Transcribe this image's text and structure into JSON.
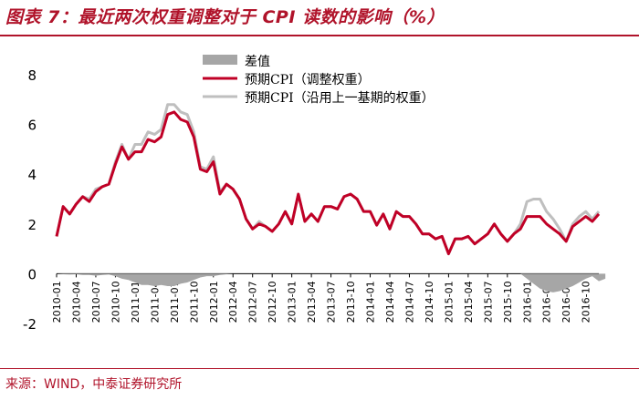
{
  "title": "图表 7：最近两次权重调整对于 CPI 读数的影响（%）",
  "source": "来源：WIND，中泰证券研究所",
  "colors": {
    "brand": "#b0132a",
    "diff": "#a6a6a6",
    "adjusted": "#c00026",
    "previous": "#bfbfbf",
    "axis": "#000000"
  },
  "chart_data": {
    "type": "line",
    "title": "最近两次权重调整对于 CPI 读数的影响（%）",
    "ylim": [
      -2,
      8
    ],
    "yticks": [
      "-2",
      "0",
      "2",
      "4",
      "6",
      "8"
    ],
    "xticks": [
      "2010-01",
      "2010-04",
      "2010-07",
      "2010-10",
      "2011-01",
      "2011-04",
      "2011-07",
      "2011-10",
      "2012-01",
      "2012-04",
      "2012-07",
      "2012-10",
      "2013-01",
      "2013-04",
      "2013-07",
      "2013-10",
      "2014-01",
      "2014-04",
      "2014-07",
      "2014-10",
      "2015-01",
      "2015-04",
      "2015-07",
      "2015-10",
      "2016-01",
      "2016-04",
      "2016-07",
      "2016-10"
    ],
    "legend": {
      "placement": "top-center",
      "items": [
        "差值",
        "预期CPI（调整权重）",
        "预期CPI（沿用上一基期的权重）"
      ]
    },
    "x_start": "2010-01",
    "series": [
      {
        "name": "差值",
        "kind": "area",
        "values": [
          0,
          -0.02,
          -0.03,
          -0.02,
          -0.05,
          -0.05,
          -0.08,
          -0.05,
          -0.03,
          -0.1,
          -0.2,
          -0.25,
          -0.35,
          -0.45,
          -0.45,
          -0.5,
          -0.45,
          -0.5,
          -0.5,
          -0.4,
          -0.35,
          -0.25,
          -0.15,
          -0.1,
          -0.1,
          -0.05,
          -0.02,
          0,
          0,
          0,
          0,
          0,
          0,
          0,
          0,
          0,
          0,
          0,
          0,
          0,
          0,
          0,
          0,
          0,
          0,
          0,
          0,
          0,
          0,
          0,
          0,
          0,
          0,
          0,
          0,
          0,
          0,
          0,
          0,
          0,
          0,
          0,
          0,
          0,
          0,
          0,
          0,
          0,
          0,
          0,
          0,
          0,
          -0.2,
          -0.4,
          -0.6,
          -0.7,
          -0.75,
          -0.7,
          -0.6,
          -0.5,
          -0.35,
          -0.2,
          -0.1,
          -0.3,
          -0.2
        ]
      },
      {
        "name": "预期CPI（调整权重）",
        "kind": "line",
        "values": [
          1.5,
          2.7,
          2.4,
          2.8,
          3.1,
          2.9,
          3.3,
          3.5,
          3.6,
          4.4,
          5.1,
          4.6,
          4.9,
          4.9,
          5.4,
          5.3,
          5.5,
          6.4,
          6.5,
          6.2,
          6.1,
          5.5,
          4.2,
          4.1,
          4.5,
          3.2,
          3.6,
          3.4,
          3.0,
          2.2,
          1.8,
          2.0,
          1.9,
          1.7,
          2.0,
          2.5,
          2.0,
          3.2,
          2.1,
          2.4,
          2.1,
          2.7,
          2.7,
          2.6,
          3.1,
          3.2,
          3.0,
          2.5,
          2.5,
          1.95,
          2.4,
          1.8,
          2.5,
          2.3,
          2.3,
          2.0,
          1.6,
          1.6,
          1.4,
          1.5,
          0.8,
          1.4,
          1.4,
          1.5,
          1.2,
          1.4,
          1.6,
          2.0,
          1.6,
          1.3,
          1.6,
          1.8,
          2.3,
          2.3,
          2.3,
          2.0,
          1.8,
          1.6,
          1.3,
          1.9,
          2.1,
          2.3,
          2.1,
          2.4
        ]
      },
      {
        "name": "预期CPI（沿用上一基期的权重）",
        "kind": "line",
        "values": [
          1.5,
          2.7,
          2.4,
          2.8,
          3.1,
          3.0,
          3.4,
          3.5,
          3.6,
          4.5,
          5.2,
          4.6,
          5.2,
          5.2,
          5.7,
          5.6,
          5.8,
          6.8,
          6.8,
          6.5,
          6.4,
          5.7,
          4.3,
          4.2,
          4.7,
          3.3,
          3.6,
          3.4,
          3.0,
          2.2,
          1.8,
          2.1,
          1.9,
          1.7,
          2.0,
          2.5,
          2.0,
          3.2,
          2.1,
          2.4,
          2.1,
          2.7,
          2.7,
          2.6,
          3.1,
          3.2,
          3.0,
          2.5,
          2.5,
          1.95,
          2.4,
          1.8,
          2.5,
          2.3,
          2.3,
          2.0,
          1.6,
          1.6,
          1.4,
          1.5,
          0.8,
          1.4,
          1.4,
          1.5,
          1.2,
          1.4,
          1.6,
          2.0,
          1.6,
          1.3,
          1.6,
          2.0,
          2.9,
          3.0,
          3.0,
          2.5,
          2.2,
          1.8,
          1.3,
          2.0,
          2.3,
          2.5,
          2.2,
          2.5
        ]
      }
    ]
  }
}
